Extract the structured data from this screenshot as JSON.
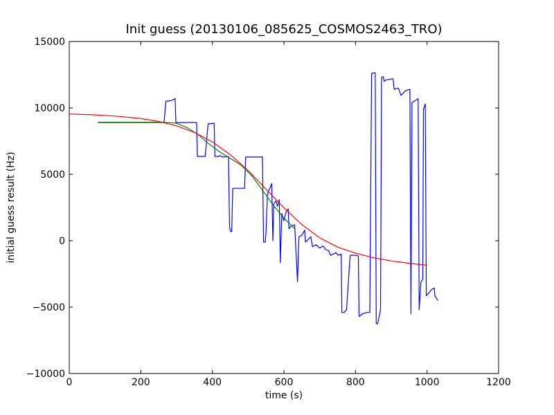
{
  "chart_data": {
    "type": "line",
    "title": "Init guess (20130106_085625_COSMOS2463_TRO)",
    "xlabel": "time (s)",
    "ylabel": "initial guess result (Hz)",
    "xlim": [
      0,
      1200
    ],
    "ylim": [
      -10000,
      15000
    ],
    "xticks": [
      0,
      200,
      400,
      600,
      800,
      1000,
      1200
    ],
    "yticks": [
      -10000,
      -5000,
      0,
      5000,
      10000,
      15000
    ],
    "xtick_labels": [
      "0",
      "200",
      "400",
      "600",
      "800",
      "1000",
      "1200"
    ],
    "ytick_labels": [
      "−10000",
      "−5000",
      "0",
      "5000",
      "10000",
      "15000"
    ],
    "grid": false,
    "legend": "none",
    "series": [
      {
        "color": "#0000ff",
        "points": [
          [
            80,
            8900
          ],
          [
            265,
            8900
          ],
          [
            270,
            10500
          ],
          [
            285,
            10550
          ],
          [
            296,
            10700
          ],
          [
            298,
            8900
          ],
          [
            356,
            8900
          ],
          [
            358,
            6350
          ],
          [
            380,
            6350
          ],
          [
            388,
            8800
          ],
          [
            405,
            8850
          ],
          [
            407,
            6350
          ],
          [
            418,
            6350
          ],
          [
            420,
            6400
          ],
          [
            430,
            6300
          ],
          [
            445,
            6350
          ],
          [
            448,
            1000
          ],
          [
            451,
            700
          ],
          [
            454,
            700
          ],
          [
            457,
            3950
          ],
          [
            490,
            3950
          ],
          [
            493,
            6300
          ],
          [
            540,
            6300
          ],
          [
            543,
            -100
          ],
          [
            548,
            -100
          ],
          [
            550,
            700
          ],
          [
            554,
            3500
          ],
          [
            566,
            4300
          ],
          [
            569,
            0
          ],
          [
            572,
            2800
          ],
          [
            578,
            3000
          ],
          [
            582,
            2600
          ],
          [
            587,
            3100
          ],
          [
            590,
            -1650
          ],
          [
            594,
            2050
          ],
          [
            600,
            1500
          ],
          [
            605,
            2100
          ],
          [
            612,
            2400
          ],
          [
            614,
            900
          ],
          [
            620,
            1100
          ],
          [
            630,
            1200
          ],
          [
            638,
            -3100
          ],
          [
            642,
            300
          ],
          [
            650,
            400
          ],
          [
            658,
            800
          ],
          [
            660,
            -100
          ],
          [
            668,
            100
          ],
          [
            675,
            300
          ],
          [
            680,
            -450
          ],
          [
            690,
            -300
          ],
          [
            700,
            -550
          ],
          [
            710,
            -400
          ],
          [
            716,
            -650
          ],
          [
            725,
            -750
          ],
          [
            730,
            -1100
          ],
          [
            738,
            -1000
          ],
          [
            745,
            -900
          ],
          [
            752,
            -1100
          ],
          [
            760,
            -1000
          ],
          [
            762,
            -5400
          ],
          [
            768,
            -5400
          ],
          [
            775,
            -5200
          ],
          [
            785,
            -1100
          ],
          [
            800,
            -1100
          ],
          [
            808,
            -1150
          ],
          [
            810,
            -5700
          ],
          [
            816,
            -5600
          ],
          [
            820,
            -5500
          ],
          [
            832,
            -5400
          ],
          [
            840,
            -5400
          ],
          [
            845,
            12600
          ],
          [
            855,
            12650
          ],
          [
            858,
            -6250
          ],
          [
            862,
            -6250
          ],
          [
            870,
            -5200
          ],
          [
            873,
            12300
          ],
          [
            878,
            12350
          ],
          [
            880,
            12000
          ],
          [
            885,
            12100
          ],
          [
            905,
            12200
          ],
          [
            908,
            11400
          ],
          [
            920,
            11500
          ],
          [
            927,
            10950
          ],
          [
            940,
            11300
          ],
          [
            952,
            11400
          ],
          [
            955,
            -5500
          ],
          [
            958,
            10400
          ],
          [
            975,
            10700
          ],
          [
            978,
            -5200
          ],
          [
            983,
            -3100
          ],
          [
            988,
            -2900
          ],
          [
            990,
            9900
          ],
          [
            995,
            10300
          ],
          [
            998,
            -4150
          ],
          [
            1012,
            -3700
          ],
          [
            1020,
            -3550
          ],
          [
            1022,
            -4150
          ],
          [
            1030,
            -4500
          ]
        ]
      },
      {
        "color": "#008000",
        "points": [
          [
            80,
            8920
          ],
          [
            200,
            8920
          ],
          [
            260,
            8920
          ],
          [
            300,
            8850
          ],
          [
            330,
            8500
          ],
          [
            360,
            8000
          ],
          [
            390,
            7300
          ],
          [
            420,
            6700
          ],
          [
            450,
            6200
          ],
          [
            480,
            5700
          ],
          [
            510,
            4900
          ],
          [
            540,
            3800
          ],
          [
            570,
            2700
          ],
          [
            600,
            1700
          ],
          [
            630,
            900
          ]
        ]
      },
      {
        "color": "#ff0000",
        "points": [
          [
            0,
            9540
          ],
          [
            50,
            9500
          ],
          [
            100,
            9440
          ],
          [
            150,
            9340
          ],
          [
            200,
            9200
          ],
          [
            250,
            8980
          ],
          [
            300,
            8650
          ],
          [
            350,
            8150
          ],
          [
            400,
            7450
          ],
          [
            450,
            6480
          ],
          [
            500,
            5280
          ],
          [
            550,
            3880
          ],
          [
            600,
            2480
          ],
          [
            650,
            1220
          ],
          [
            700,
            220
          ],
          [
            750,
            -480
          ],
          [
            800,
            -940
          ],
          [
            850,
            -1280
          ],
          [
            900,
            -1520
          ],
          [
            950,
            -1700
          ],
          [
            1000,
            -1850
          ]
        ]
      }
    ]
  }
}
